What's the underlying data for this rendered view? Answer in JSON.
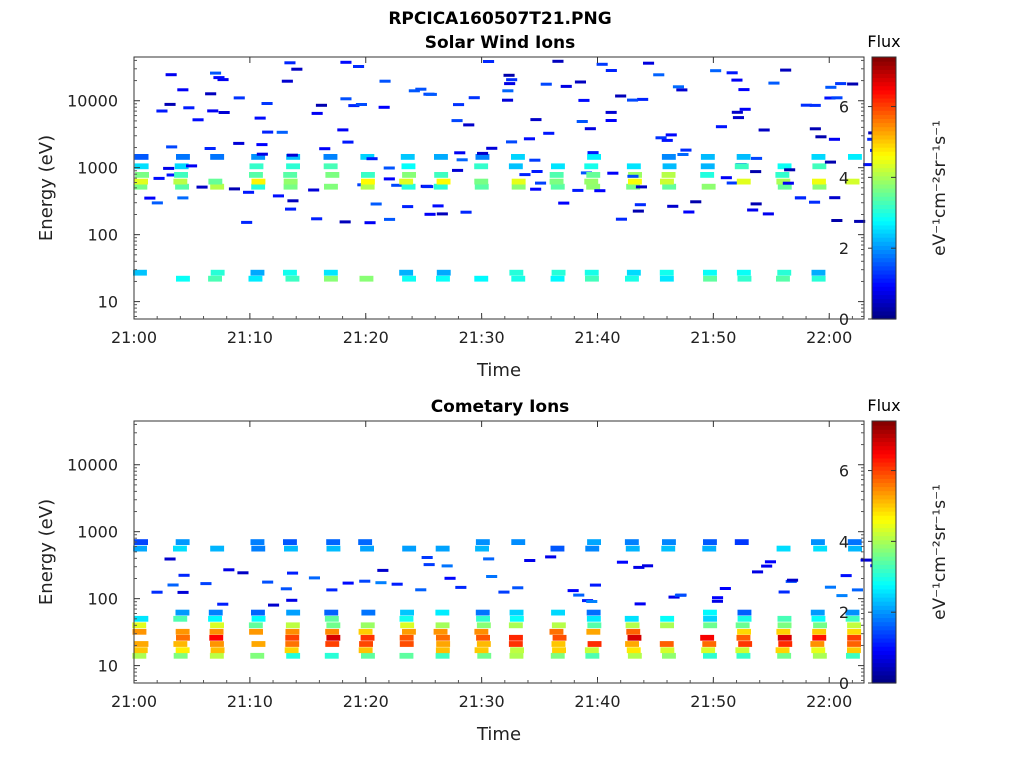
{
  "figure": {
    "title": "RPCICA160507T21.PNG",
    "colormap": [
      "#00007f",
      "#0000ff",
      "#007fff",
      "#00ffff",
      "#7fff7f",
      "#ffff00",
      "#ff7f00",
      "#ff0000",
      "#7f0000"
    ]
  },
  "chart_data": [
    {
      "type": "heatmap",
      "title": "Solar Wind Ions",
      "xlabel": "Time",
      "ylabel": "Energy (eV)",
      "ylog": true,
      "ylim": [
        5.5,
        45000
      ],
      "xlim": [
        "21:00",
        "22:03"
      ],
      "x_ticks": [
        "21:00",
        "21:10",
        "21:20",
        "21:30",
        "21:40",
        "21:50",
        "22:00"
      ],
      "y_ticks": [
        10,
        100,
        1000,
        10000
      ],
      "y_tick_labels": [
        "10",
        "100",
        "1000",
        "10000"
      ],
      "colorbar": {
        "label": "Flux",
        "unit": "eV⁻¹cm⁻²sr⁻¹s⁻¹",
        "range": [
          0,
          7.4
        ],
        "ticks": [
          0,
          2,
          4,
          6
        ]
      },
      "sweep_start_minutes": [
        0,
        3.5,
        6.5,
        10,
        13,
        16.5,
        19.5,
        23,
        26,
        29.5,
        32.5,
        36,
        39,
        42.5,
        45.5,
        49,
        52,
        55.5,
        58.5,
        61.5
      ],
      "bands": [
        {
          "energy": 22,
          "flux": 3.2
        },
        {
          "energy": 27,
          "flux": 2.6
        },
        {
          "energy": 520,
          "flux": 3.6
        },
        {
          "energy": 620,
          "flux": 4.1
        },
        {
          "energy": 780,
          "flux": 3.5
        },
        {
          "energy": 1050,
          "flux": 2.7
        },
        {
          "energy": 1450,
          "flux": 2.1
        }
      ],
      "sparse_energy_range": [
        150,
        40000
      ],
      "sparse_flux": 1.0
    },
    {
      "type": "heatmap",
      "title": "Cometary Ions",
      "xlabel": "Time",
      "ylabel": "Energy (eV)",
      "ylog": true,
      "ylim": [
        5.5,
        45000
      ],
      "xlim": [
        "21:00",
        "22:03"
      ],
      "x_ticks": [
        "21:00",
        "21:10",
        "21:20",
        "21:30",
        "21:40",
        "21:50",
        "22:00"
      ],
      "y_ticks": [
        10,
        100,
        1000,
        10000
      ],
      "y_tick_labels": [
        "10",
        "100",
        "1000",
        "10000"
      ],
      "colorbar": {
        "label": "Flux",
        "unit": "eV⁻¹cm⁻²sr⁻¹s⁻¹",
        "range": [
          0,
          7.4
        ],
        "ticks": [
          0,
          2,
          4,
          6
        ]
      },
      "sweep_start_minutes": [
        0,
        3.5,
        6.5,
        10,
        13,
        16.5,
        19.5,
        23,
        26,
        29.5,
        32.5,
        36,
        39,
        42.5,
        45.5,
        49,
        52,
        55.5,
        58.5,
        61.5
      ],
      "bands": [
        {
          "energy": 14,
          "flux": 3.6
        },
        {
          "energy": 17,
          "flux": 4.6
        },
        {
          "energy": 21,
          "flux": 5.6
        },
        {
          "energy": 26,
          "flux": 6.2
        },
        {
          "energy": 32,
          "flux": 5.2
        },
        {
          "energy": 40,
          "flux": 3.9
        },
        {
          "energy": 50,
          "flux": 2.9
        },
        {
          "energy": 62,
          "flux": 2.2
        },
        {
          "energy": 560,
          "flux": 2.0
        },
        {
          "energy": 700,
          "flux": 1.6
        }
      ],
      "sparse_energy_range": [
        80,
        420
      ],
      "sparse_flux": 1.2
    }
  ]
}
